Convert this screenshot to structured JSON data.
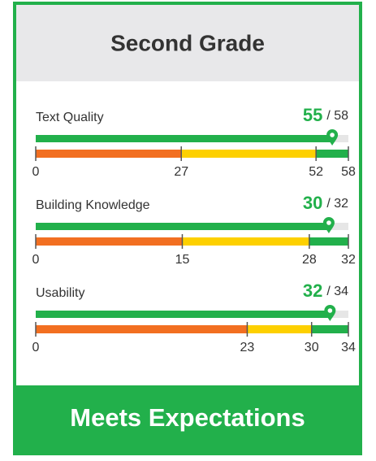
{
  "header": {
    "title": "Second Grade"
  },
  "gateways": [
    {
      "label": "Text Quality",
      "score": 55,
      "of": "/ 58",
      "thresholds": [
        0,
        27,
        52,
        58
      ]
    },
    {
      "label": "Building Knowledge",
      "score": 30,
      "of": "/ 32",
      "thresholds": [
        0,
        15,
        28,
        32
      ]
    },
    {
      "label": "Usability",
      "score": 32,
      "of": "/ 34",
      "thresholds": [
        0,
        23,
        30,
        34
      ]
    }
  ],
  "colors": {
    "low": "#f26f21",
    "mid": "#fdd000",
    "high": "#22b04b",
    "track": "#e6e6e6"
  },
  "footer": {
    "rating": "Meets Expectations"
  }
}
